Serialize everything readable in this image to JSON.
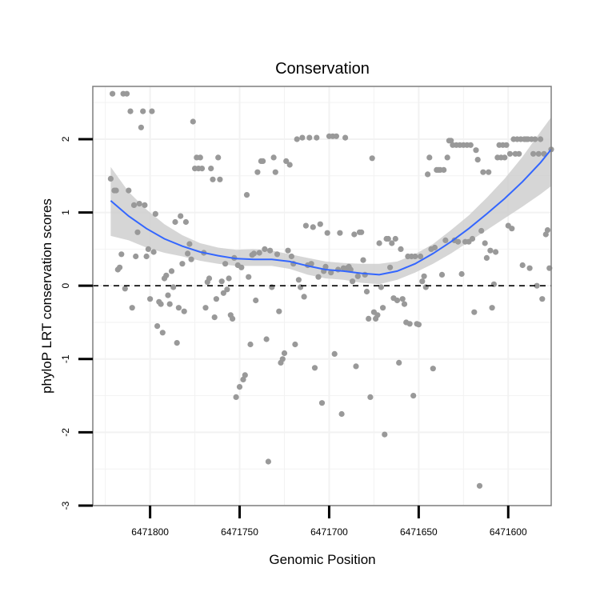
{
  "chart_data": {
    "type": "scatter",
    "title": "Conservation",
    "xlabel": "Genomic Position",
    "ylabel": "phyloP LRT conservation scores",
    "x_reversed": true,
    "xlim": [
      6471832,
      6471576
    ],
    "ylim": [
      -3,
      2.72
    ],
    "x_ticks": [
      {
        "value": 6471800,
        "label": "6471800"
      },
      {
        "value": 6471750,
        "label": "6471750"
      },
      {
        "value": 6471700,
        "label": "6471700"
      },
      {
        "value": 6471650,
        "label": "6471650"
      },
      {
        "value": 6471600,
        "label": "6471600"
      }
    ],
    "y_ticks": [
      {
        "value": -3,
        "label": "-3"
      },
      {
        "value": -2,
        "label": "-2"
      },
      {
        "value": -1,
        "label": "-1"
      },
      {
        "value": 0,
        "label": "0"
      },
      {
        "value": 1,
        "label": "1"
      },
      {
        "value": 2,
        "label": "2"
      }
    ],
    "reference_line": {
      "y": 0,
      "style": "dashed"
    },
    "colors": {
      "points": "#999999",
      "smooth_line": "#3366ff",
      "ribbon": "#cccccc",
      "panel_border": "#7f7f7f",
      "grid": "#f2f2f2"
    },
    "series": [
      {
        "name": "scores",
        "points": [
          [
            6471822,
            1.46
          ],
          [
            6471821,
            2.62
          ],
          [
            6471820,
            1.3
          ],
          [
            6471819,
            1.3
          ],
          [
            6471818,
            0.22
          ],
          [
            6471817,
            0.25
          ],
          [
            6471816,
            0.43
          ],
          [
            6471815,
            2.62
          ],
          [
            6471814,
            -0.04
          ],
          [
            6471813,
            2.62
          ],
          [
            6471812,
            1.3
          ],
          [
            6471811,
            2.38
          ],
          [
            6471810,
            -0.3
          ],
          [
            6471809,
            1.1
          ],
          [
            6471808,
            0.4
          ],
          [
            6471807,
            0.73
          ],
          [
            6471806,
            1.12
          ],
          [
            6471805,
            2.16
          ],
          [
            6471804,
            2.38
          ],
          [
            6471803,
            1.1
          ],
          [
            6471802,
            0.4
          ],
          [
            6471801,
            0.5
          ],
          [
            6471800,
            -0.18
          ],
          [
            6471799,
            2.38
          ],
          [
            6471798,
            0.46
          ],
          [
            6471797,
            0.98
          ],
          [
            6471796,
            -0.55
          ],
          [
            6471795,
            -0.22
          ],
          [
            6471794,
            -0.25
          ],
          [
            6471793,
            -0.64
          ],
          [
            6471792,
            0.1
          ],
          [
            6471791,
            0.14
          ],
          [
            6471790,
            -0.13
          ],
          [
            6471789,
            -0.25
          ],
          [
            6471788,
            0.2
          ],
          [
            6471787,
            -0.02
          ],
          [
            6471786,
            0.87
          ],
          [
            6471785,
            -0.78
          ],
          [
            6471784,
            -0.3
          ],
          [
            6471783,
            0.95
          ],
          [
            6471782,
            0.3
          ],
          [
            6471781,
            -0.35
          ],
          [
            6471780,
            0.87
          ],
          [
            6471779,
            0.44
          ],
          [
            6471778,
            0.57
          ],
          [
            6471777,
            0.36
          ],
          [
            6471776,
            2.24
          ],
          [
            6471775,
            1.6
          ],
          [
            6471774,
            1.75
          ],
          [
            6471773,
            1.6
          ],
          [
            6471772,
            1.75
          ],
          [
            6471771,
            1.6
          ],
          [
            6471770,
            0.45
          ],
          [
            6471769,
            -0.3
          ],
          [
            6471768,
            0.05
          ],
          [
            6471767,
            0.1
          ],
          [
            6471766,
            1.6
          ],
          [
            6471765,
            1.45
          ],
          [
            6471764,
            -0.43
          ],
          [
            6471763,
            -0.18
          ],
          [
            6471762,
            1.75
          ],
          [
            6471761,
            1.45
          ],
          [
            6471760,
            0.06
          ],
          [
            6471759,
            -0.1
          ],
          [
            6471758,
            0.3
          ],
          [
            6471757,
            -0.05
          ],
          [
            6471756,
            0.1
          ],
          [
            6471755,
            -0.4
          ],
          [
            6471754,
            -0.45
          ],
          [
            6471753,
            0.38
          ],
          [
            6471752,
            -1.52
          ],
          [
            6471751,
            0.28
          ],
          [
            6471750,
            -1.38
          ],
          [
            6471749,
            0.25
          ],
          [
            6471748,
            -1.28
          ],
          [
            6471747,
            -1.22
          ],
          [
            6471746,
            1.24
          ],
          [
            6471745,
            0.12
          ],
          [
            6471744,
            -0.8
          ],
          [
            6471743,
            0.42
          ],
          [
            6471742,
            0.44
          ],
          [
            6471741,
            -0.2
          ],
          [
            6471740,
            1.55
          ],
          [
            6471739,
            0.45
          ],
          [
            6471738,
            1.7
          ],
          [
            6471737,
            1.7
          ],
          [
            6471736,
            0.5
          ],
          [
            6471735,
            -0.73
          ],
          [
            6471734,
            -2.4
          ],
          [
            6471733,
            0.48
          ],
          [
            6471732,
            -0.02
          ],
          [
            6471731,
            1.75
          ],
          [
            6471730,
            1.55
          ],
          [
            6471729,
            0.43
          ],
          [
            6471728,
            -0.35
          ],
          [
            6471727,
            -1.05
          ],
          [
            6471726,
            -1.0
          ],
          [
            6471725,
            -0.92
          ],
          [
            6471724,
            1.7
          ],
          [
            6471723,
            0.48
          ],
          [
            6471722,
            1.65
          ],
          [
            6471721,
            0.4
          ],
          [
            6471720,
            0.3
          ],
          [
            6471719,
            -0.8
          ],
          [
            6471718,
            2.0
          ],
          [
            6471717,
            0.08
          ],
          [
            6471716,
            -0.02
          ],
          [
            6471715,
            2.02
          ],
          [
            6471714,
            -0.15
          ],
          [
            6471713,
            0.82
          ],
          [
            6471712,
            0.28
          ],
          [
            6471711,
            2.02
          ],
          [
            6471710,
            0.3
          ],
          [
            6471709,
            0.8
          ],
          [
            6471708,
            -1.12
          ],
          [
            6471707,
            2.02
          ],
          [
            6471706,
            0.12
          ],
          [
            6471705,
            0.84
          ],
          [
            6471704,
            -1.6
          ],
          [
            6471703,
            0.2
          ],
          [
            6471702,
            0.26
          ],
          [
            6471701,
            0.72
          ],
          [
            6471700,
            2.04
          ],
          [
            6471699,
            0.18
          ],
          [
            6471698,
            2.04
          ],
          [
            6471697,
            -0.93
          ],
          [
            6471696,
            2.04
          ],
          [
            6471695,
            0.22
          ],
          [
            6471694,
            0.72
          ],
          [
            6471693,
            -1.75
          ],
          [
            6471692,
            0.24
          ],
          [
            6471691,
            2.02
          ],
          [
            6471690,
            0.24
          ],
          [
            6471689,
            0.26
          ],
          [
            6471688,
            0.22
          ],
          [
            6471687,
            0.06
          ],
          [
            6471686,
            0.7
          ],
          [
            6471685,
            -1.1
          ],
          [
            6471684,
            0.13
          ],
          [
            6471683,
            0.73
          ],
          [
            6471682,
            0.73
          ],
          [
            6471681,
            0.35
          ],
          [
            6471680,
            0.15
          ],
          [
            6471679,
            -0.08
          ],
          [
            6471678,
            -0.45
          ],
          [
            6471677,
            -1.52
          ],
          [
            6471676,
            1.74
          ],
          [
            6471675,
            -0.36
          ],
          [
            6471674,
            -0.45
          ],
          [
            6471673,
            -0.4
          ],
          [
            6471672,
            0.58
          ],
          [
            6471671,
            -0.02
          ],
          [
            6471670,
            -0.3
          ],
          [
            6471669,
            -2.03
          ],
          [
            6471668,
            0.64
          ],
          [
            6471667,
            0.64
          ],
          [
            6471666,
            0.25
          ],
          [
            6471665,
            0.58
          ],
          [
            6471664,
            -0.17
          ],
          [
            6471663,
            0.64
          ],
          [
            6471662,
            -0.2
          ],
          [
            6471661,
            -1.05
          ],
          [
            6471660,
            0.5
          ],
          [
            6471659,
            -0.18
          ],
          [
            6471658,
            -0.25
          ],
          [
            6471657,
            -0.5
          ],
          [
            6471656,
            0.4
          ],
          [
            6471655,
            -0.52
          ],
          [
            6471654,
            0.4
          ],
          [
            6471653,
            -1.5
          ],
          [
            6471652,
            0.4
          ],
          [
            6471651,
            -0.52
          ],
          [
            6471650,
            -0.53
          ],
          [
            6471649,
            0.4
          ],
          [
            6471648,
            0.06
          ],
          [
            6471647,
            0.13
          ],
          [
            6471646,
            -0.02
          ],
          [
            6471645,
            1.52
          ],
          [
            6471644,
            1.75
          ],
          [
            6471643,
            0.5
          ],
          [
            6471642,
            -1.13
          ],
          [
            6471641,
            0.52
          ],
          [
            6471640,
            1.58
          ],
          [
            6471639,
            1.58
          ],
          [
            6471638,
            1.58
          ],
          [
            6471637,
            0.15
          ],
          [
            6471636,
            1.58
          ],
          [
            6471635,
            0.62
          ],
          [
            6471634,
            1.75
          ],
          [
            6471633,
            1.98
          ],
          [
            6471632,
            1.98
          ],
          [
            6471631,
            1.92
          ],
          [
            6471630,
            0.62
          ],
          [
            6471629,
            1.92
          ],
          [
            6471628,
            0.6
          ],
          [
            6471627,
            1.92
          ],
          [
            6471626,
            0.16
          ],
          [
            6471625,
            1.92
          ],
          [
            6471624,
            0.6
          ],
          [
            6471623,
            1.92
          ],
          [
            6471622,
            0.6
          ],
          [
            6471621,
            1.92
          ],
          [
            6471620,
            0.64
          ],
          [
            6471619,
            -0.36
          ],
          [
            6471618,
            1.85
          ],
          [
            6471617,
            1.72
          ],
          [
            6471616,
            -2.73
          ],
          [
            6471615,
            0.75
          ],
          [
            6471614,
            1.55
          ],
          [
            6471613,
            0.58
          ],
          [
            6471612,
            0.38
          ],
          [
            6471611,
            1.55
          ],
          [
            6471610,
            0.48
          ],
          [
            6471609,
            -0.3
          ],
          [
            6471608,
            0.02
          ],
          [
            6471607,
            0.46
          ],
          [
            6471606,
            1.75
          ],
          [
            6471605,
            1.92
          ],
          [
            6471604,
            1.75
          ],
          [
            6471603,
            1.92
          ],
          [
            6471602,
            1.75
          ],
          [
            6471601,
            1.92
          ],
          [
            6471600,
            0.82
          ],
          [
            6471599,
            1.8
          ],
          [
            6471598,
            0.78
          ],
          [
            6471597,
            2.0
          ],
          [
            6471596,
            1.8
          ],
          [
            6471595,
            2.0
          ],
          [
            6471594,
            1.8
          ],
          [
            6471593,
            2.0
          ],
          [
            6471592,
            0.28
          ],
          [
            6471591,
            2.0
          ],
          [
            6471590,
            2.0
          ],
          [
            6471589,
            2.0
          ],
          [
            6471588,
            0.24
          ],
          [
            6471587,
            2.0
          ],
          [
            6471586,
            1.8
          ],
          [
            6471585,
            2.0
          ],
          [
            6471584,
            0.0
          ],
          [
            6471583,
            1.8
          ],
          [
            6471582,
            2.0
          ],
          [
            6471581,
            -0.18
          ],
          [
            6471580,
            1.8
          ],
          [
            6471579,
            0.7
          ],
          [
            6471578,
            0.76
          ],
          [
            6471577,
            0.24
          ],
          [
            6471576,
            1.86
          ]
        ]
      }
    ],
    "smooth": {
      "x": [
        6471822,
        6471812,
        6471802,
        6471792,
        6471782,
        6471772,
        6471762,
        6471752,
        6471742,
        6471732,
        6471722,
        6471712,
        6471702,
        6471692,
        6471682,
        6471672,
        6471662,
        6471652,
        6471642,
        6471632,
        6471622,
        6471612,
        6471602,
        6471592,
        6471582,
        6471576
      ],
      "y": [
        1.16,
        0.95,
        0.78,
        0.64,
        0.54,
        0.46,
        0.41,
        0.37,
        0.36,
        0.36,
        0.33,
        0.27,
        0.22,
        0.2,
        0.17,
        0.15,
        0.2,
        0.3,
        0.44,
        0.6,
        0.78,
        0.98,
        1.19,
        1.42,
        1.68,
        1.86
      ],
      "lower": [
        0.68,
        0.62,
        0.52,
        0.45,
        0.4,
        0.34,
        0.3,
        0.27,
        0.27,
        0.27,
        0.23,
        0.15,
        0.1,
        0.08,
        0.04,
        0.02,
        0.08,
        0.18,
        0.3,
        0.44,
        0.6,
        0.76,
        0.92,
        1.08,
        1.25,
        1.36
      ],
      "upper": [
        1.62,
        1.28,
        1.04,
        0.84,
        0.69,
        0.58,
        0.52,
        0.49,
        0.5,
        0.48,
        0.43,
        0.38,
        0.33,
        0.31,
        0.3,
        0.3,
        0.33,
        0.43,
        0.57,
        0.76,
        0.96,
        1.2,
        1.46,
        1.76,
        2.1,
        2.3
      ]
    }
  }
}
